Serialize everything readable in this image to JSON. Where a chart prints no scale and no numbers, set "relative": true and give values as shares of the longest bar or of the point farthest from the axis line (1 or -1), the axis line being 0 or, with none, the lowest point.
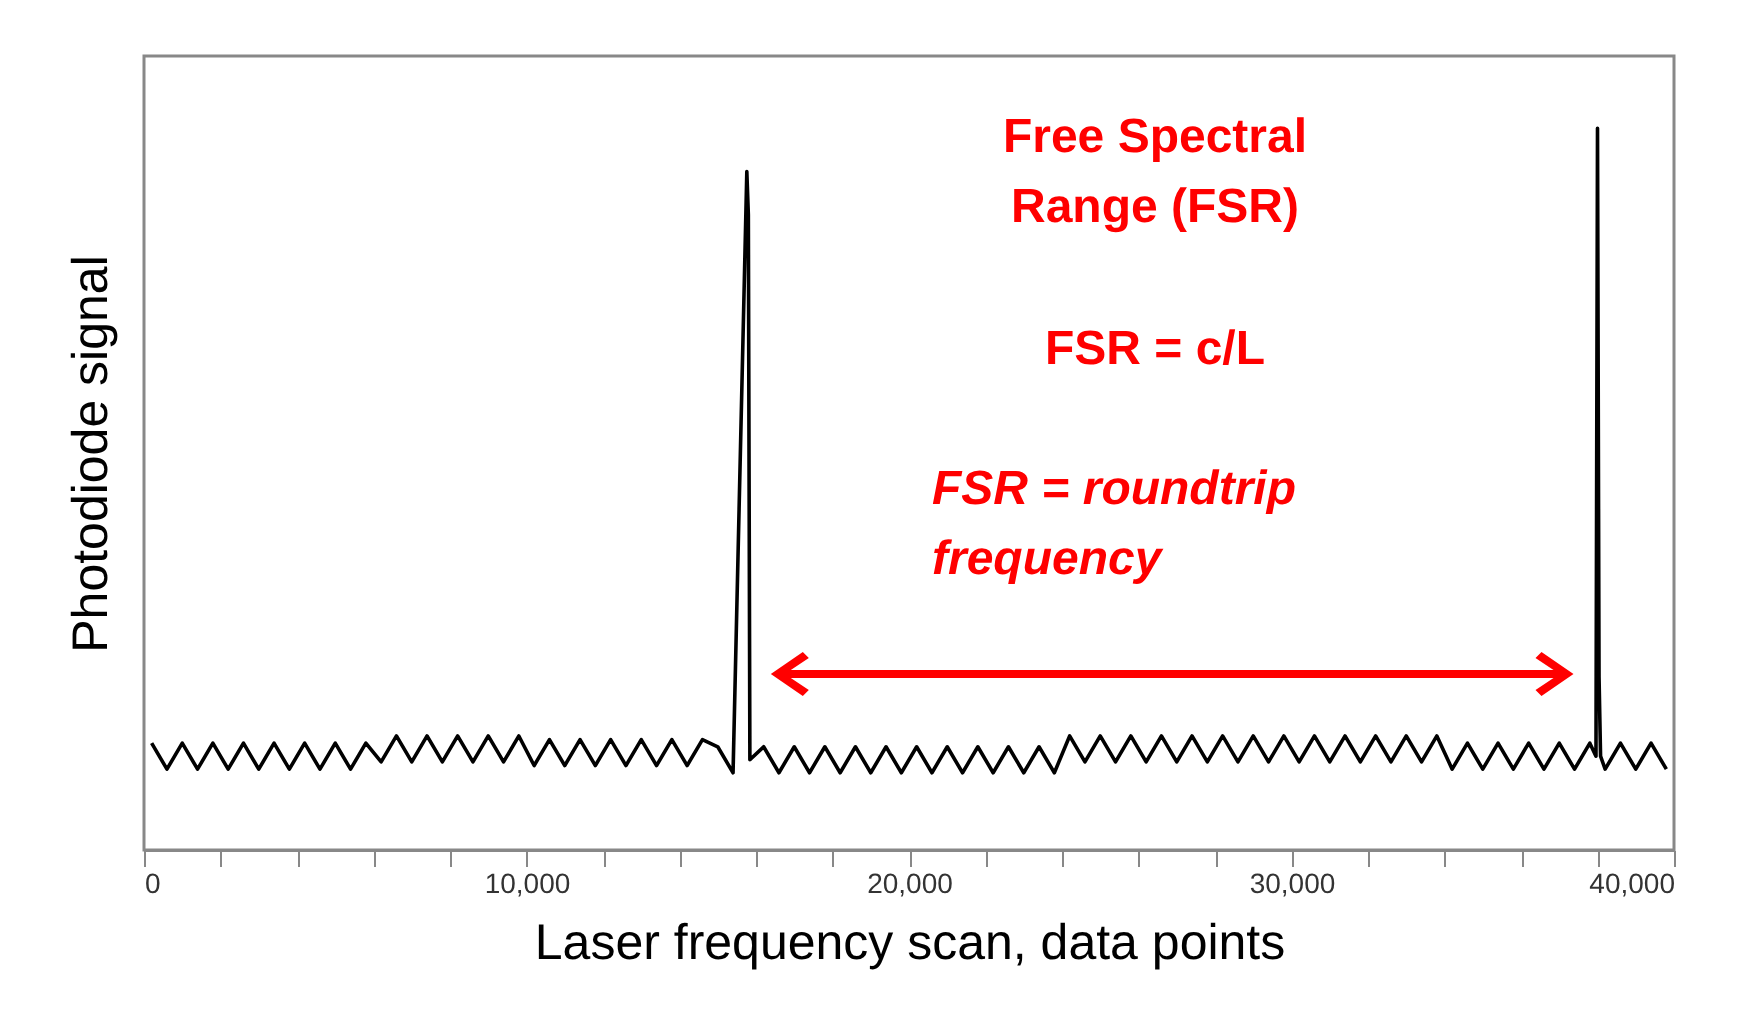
{
  "chart_data": {
    "type": "line",
    "relative": true,
    "xlabel": "Laser frequency scan, data points",
    "ylabel": "Photodiode signal",
    "annotations": [
      "Free Spectral Range (FSR)",
      "FSR = c/L",
      "FSR = roundtrip frequency"
    ],
    "xlim": [
      0,
      40000
    ],
    "xticks": [
      0,
      {
        "value": 2000,
        "label": null
      },
      {
        "value": 4000,
        "label": null
      },
      {
        "value": 6000,
        "label": null
      },
      {
        "value": 8000,
        "label": null
      },
      {
        "value": 10000,
        "label": "10,000"
      },
      {
        "value": 12000,
        "label": null
      },
      {
        "value": 14000,
        "label": null
      },
      {
        "value": 16000,
        "label": null
      },
      {
        "value": 18000,
        "label": null
      },
      {
        "value": 20000,
        "label": "20,000"
      },
      {
        "value": 22000,
        "label": null
      },
      {
        "value": 24000,
        "label": null
      },
      {
        "value": 26000,
        "label": null
      },
      {
        "value": 28000,
        "label": null
      },
      {
        "value": 30000,
        "label": "30,000"
      },
      {
        "value": 32000,
        "label": null
      },
      {
        "value": 34000,
        "label": null
      },
      {
        "value": 36000,
        "label": null
      },
      {
        "value": 38000,
        "label": null
      },
      {
        "value": 40000,
        "label": "40,000"
      }
    ],
    "grid": false,
    "legend": false,
    "series": [
      {
        "color": "#000000",
        "x": [
          200,
          600,
          1000,
          1400,
          1800,
          2200,
          2600,
          3000,
          3400,
          3800,
          4200,
          4600,
          5000,
          5400,
          5800,
          6200,
          6600,
          7000,
          7400,
          7800,
          8200,
          8600,
          9000,
          9400,
          9800,
          10200,
          10600,
          11000,
          11400,
          11800,
          12200,
          12600,
          13000,
          13400,
          13800,
          14200,
          14600,
          15000,
          15400,
          15760,
          15800,
          15840,
          16200,
          16600,
          17000,
          17400,
          17800,
          18200,
          18600,
          19000,
          19400,
          19800,
          20200,
          20600,
          21000,
          21400,
          21800,
          22200,
          22600,
          23000,
          23400,
          23800,
          24200,
          24600,
          25000,
          25400,
          25800,
          26200,
          26600,
          27000,
          27400,
          27800,
          28200,
          28600,
          29000,
          29400,
          29800,
          30200,
          30600,
          31000,
          31400,
          31800,
          32200,
          32600,
          33000,
          33400,
          33800,
          34200,
          34600,
          35000,
          35400,
          35800,
          36200,
          36600,
          37000,
          37400,
          37800,
          37960,
          38000,
          38040,
          38080,
          38200,
          38600,
          39000,
          39400,
          39800
        ],
        "values": [
          0.148,
          0.112,
          0.148,
          0.112,
          0.148,
          0.112,
          0.148,
          0.112,
          0.148,
          0.112,
          0.148,
          0.112,
          0.148,
          0.112,
          0.148,
          0.122,
          0.158,
          0.122,
          0.158,
          0.122,
          0.158,
          0.122,
          0.158,
          0.122,
          0.158,
          0.117,
          0.153,
          0.117,
          0.153,
          0.117,
          0.153,
          0.117,
          0.153,
          0.117,
          0.153,
          0.117,
          0.153,
          0.143,
          0.107,
          0.94,
          0.88,
          0.125,
          0.143,
          0.107,
          0.143,
          0.107,
          0.143,
          0.107,
          0.143,
          0.107,
          0.143,
          0.107,
          0.143,
          0.107,
          0.143,
          0.107,
          0.143,
          0.107,
          0.143,
          0.107,
          0.143,
          0.107,
          0.158,
          0.122,
          0.158,
          0.122,
          0.158,
          0.122,
          0.158,
          0.122,
          0.158,
          0.122,
          0.158,
          0.122,
          0.158,
          0.122,
          0.158,
          0.122,
          0.158,
          0.122,
          0.158,
          0.122,
          0.158,
          0.122,
          0.158,
          0.122,
          0.158,
          0.112,
          0.148,
          0.112,
          0.148,
          0.112,
          0.148,
          0.112,
          0.148,
          0.112,
          0.148,
          0.13,
          1.0,
          0.24,
          0.13,
          0.112,
          0.148,
          0.112,
          0.148,
          0.112
        ]
      }
    ]
  }
}
